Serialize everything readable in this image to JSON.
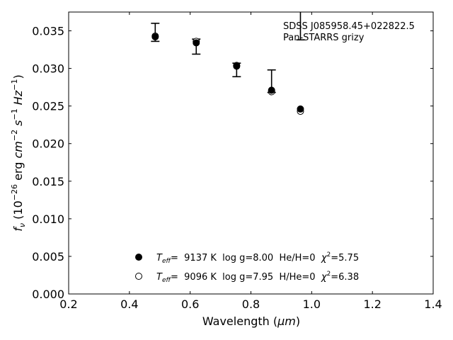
{
  "chart_data": {
    "type": "scatter",
    "xlabel_main": "Wavelength (",
    "xlabel_unit": "μm",
    "xlabel_close": ")",
    "ylabel_fnu": "f",
    "ylabel_sub": "ν",
    "ylabel_rest": " (10",
    "ylabel_exp1": "−26",
    "ylabel_erg": " erg ",
    "ylabel_cm": "cm",
    "ylabel_exp2": "−2",
    "ylabel_s": " s",
    "ylabel_exp3": "−1",
    "ylabel_hz": " Hz",
    "ylabel_exp4": "−1",
    "ylabel_close": ")",
    "xlim": [
      0.2,
      1.4
    ],
    "ylim": [
      0.0,
      0.0375
    ],
    "xticks": [
      0.2,
      0.4,
      0.6,
      0.8,
      1.0,
      1.2,
      1.4
    ],
    "xtick_labels": [
      "0.2",
      "0.4",
      "0.6",
      "0.8",
      "1.0",
      "1.2",
      "1.4"
    ],
    "yticks": [
      0.0,
      0.005,
      0.01,
      0.015,
      0.02,
      0.025,
      0.03,
      0.035
    ],
    "ytick_labels": [
      "0.000",
      "0.005",
      "0.010",
      "0.015",
      "0.020",
      "0.025",
      "0.030",
      "0.035"
    ],
    "annotation_line1": "SDSS J085958.45+022822.5",
    "annotation_line2": "Pan-STARRS grizy",
    "observed": {
      "x": [
        0.485,
        0.62,
        0.753,
        0.868,
        0.963
      ],
      "y_lo": [
        0.0336,
        0.0319,
        0.0289,
        0.0268,
        0.0338
      ],
      "y_hi": [
        0.036,
        0.0339,
        0.0307,
        0.0298,
        0.0375
      ]
    },
    "series": [
      {
        "name": "model-1",
        "marker": "filled",
        "x": [
          0.485,
          0.62,
          0.753,
          0.868,
          0.963
        ],
        "y": [
          0.0342,
          0.0334,
          0.0303,
          0.0271,
          0.0246
        ]
      },
      {
        "name": "model-2",
        "marker": "open",
        "x": [
          0.485,
          0.62,
          0.753,
          0.868,
          0.963
        ],
        "y": [
          0.0343,
          0.0336,
          0.0304,
          0.0269,
          0.0243
        ]
      }
    ],
    "legend": [
      {
        "teff_sym": "T",
        "teff_sub": "eff",
        "text_a": "=  9137 K  log g=8.00  He/H=0  ",
        "chi": "χ",
        "chi_sup": "2",
        "text_b": "=5.75",
        "marker": "filled"
      },
      {
        "teff_sym": "T",
        "teff_sub": "eff",
        "text_a": "=  9096 K  log g=7.95  H/He=0  ",
        "chi": "χ",
        "chi_sup": "2",
        "text_b": "=6.38",
        "marker": "open"
      }
    ],
    "legend_position": "lower-center",
    "grid": false,
    "colors": {
      "marker": "#000000",
      "axis": "#000000",
      "background": "#ffffff"
    }
  }
}
